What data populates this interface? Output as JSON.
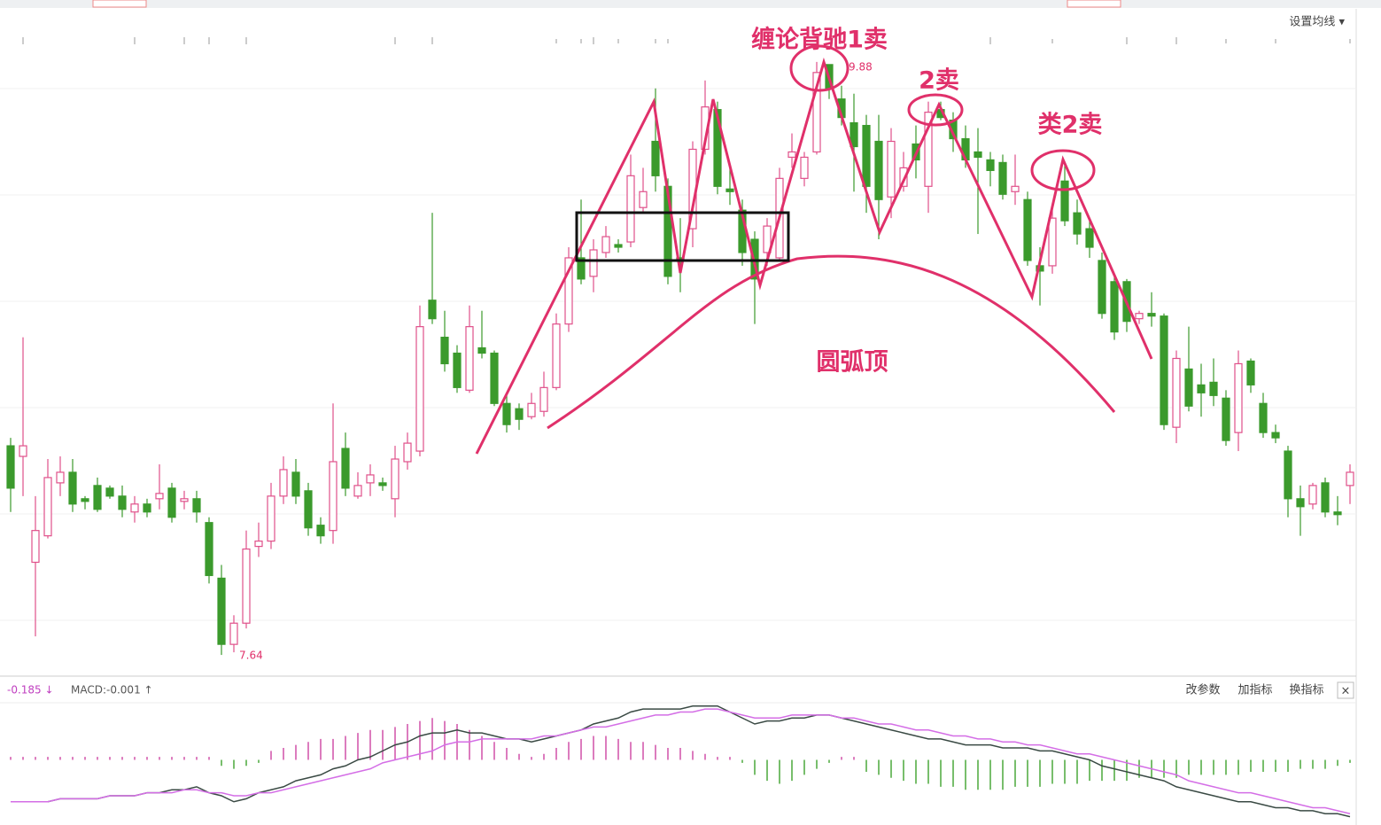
{
  "toolbar": {
    "ma_setting": "设置均线 ▾"
  },
  "macd_panel": {
    "readout": [
      "-0.185 ↓",
      "MACD:-0.001 ↑"
    ],
    "buttons": [
      "改参数",
      "加指标",
      "换指标",
      "×"
    ]
  },
  "chart_data": [
    {
      "type": "candlestick",
      "open": [
        8.43,
        8.39,
        7.99,
        8.09,
        8.29,
        8.33,
        8.23,
        8.28,
        8.27,
        8.24,
        8.18,
        8.21,
        8.23,
        8.27,
        8.22,
        8.23,
        8.14,
        7.93,
        7.68,
        7.76,
        8.05,
        8.07,
        8.24,
        8.33,
        8.26,
        8.13,
        8.11,
        8.42,
        8.24,
        8.29,
        8.29,
        8.23,
        8.37,
        8.41,
        8.98,
        8.84,
        8.78,
        8.64,
        8.8,
        8.78,
        8.59,
        8.57,
        8.54,
        8.56,
        8.65,
        8.89,
        9.14,
        9.07,
        9.16,
        9.19,
        9.2,
        9.33,
        9.58,
        9.41,
        9.14,
        9.25,
        9.55,
        9.7,
        9.4,
        9.32,
        9.21,
        9.16,
        9.14,
        9.52,
        9.44,
        9.54,
        9.87,
        9.74,
        9.65,
        9.64,
        9.58,
        9.37,
        9.41,
        9.57,
        9.41,
        9.7,
        9.66,
        9.59,
        9.54,
        9.51,
        9.5,
        9.39,
        9.36,
        9.11,
        9.11,
        9.43,
        9.31,
        9.25,
        9.13,
        9.05,
        9.05,
        8.91,
        8.93,
        8.92,
        8.5,
        8.72,
        8.66,
        8.67,
        8.61,
        8.48,
        8.75,
        8.59,
        8.48,
        8.41,
        8.23,
        8.21,
        8.29,
        8.18,
        8.28
      ],
      "close": [
        8.27,
        8.43,
        8.11,
        8.31,
        8.33,
        8.21,
        8.22,
        8.19,
        8.24,
        8.19,
        8.21,
        8.18,
        8.25,
        8.16,
        8.23,
        8.18,
        7.94,
        7.68,
        7.76,
        8.04,
        8.07,
        8.24,
        8.34,
        8.24,
        8.12,
        8.09,
        8.37,
        8.27,
        8.28,
        8.32,
        8.28,
        8.38,
        8.44,
        8.88,
        8.91,
        8.74,
        8.65,
        8.88,
        8.78,
        8.59,
        8.51,
        8.53,
        8.59,
        8.65,
        8.89,
        9.14,
        9.06,
        9.17,
        9.22,
        9.18,
        9.45,
        9.39,
        9.45,
        9.07,
        9.13,
        9.55,
        9.71,
        9.41,
        9.39,
        9.16,
        9.06,
        9.26,
        9.44,
        9.54,
        9.52,
        9.84,
        9.78,
        9.67,
        9.56,
        9.41,
        9.36,
        9.58,
        9.48,
        9.51,
        9.69,
        9.67,
        9.59,
        9.51,
        9.52,
        9.47,
        9.38,
        9.41,
        9.13,
        9.09,
        9.29,
        9.28,
        9.23,
        9.18,
        8.93,
        8.86,
        8.9,
        8.93,
        8.92,
        8.51,
        8.76,
        8.58,
        8.63,
        8.62,
        8.45,
        8.74,
        8.66,
        8.48,
        8.46,
        8.23,
        8.2,
        8.28,
        8.18,
        8.17,
        8.33
      ],
      "low": [
        8.18,
        8.24,
        7.71,
        8.08,
        8.24,
        8.18,
        8.19,
        8.18,
        8.23,
        8.16,
        8.14,
        8.16,
        8.19,
        8.14,
        8.19,
        8.14,
        7.91,
        7.64,
        7.65,
        7.74,
        8.01,
        8.04,
        8.21,
        8.21,
        8.09,
        8.06,
        8.06,
        8.24,
        8.23,
        8.24,
        8.26,
        8.16,
        8.34,
        8.39,
        8.89,
        8.71,
        8.63,
        8.63,
        8.76,
        8.58,
        8.48,
        8.49,
        8.53,
        8.54,
        8.64,
        8.86,
        9.04,
        9.01,
        9.14,
        9.16,
        9.18,
        9.31,
        9.39,
        9.04,
        9.01,
        9.18,
        9.53,
        9.38,
        9.34,
        9.11,
        8.89,
        9.11,
        9.13,
        9.48,
        9.41,
        9.53,
        9.74,
        9.64,
        9.39,
        9.31,
        9.21,
        9.29,
        9.39,
        9.44,
        9.31,
        9.66,
        9.54,
        9.48,
        9.23,
        9.41,
        9.36,
        9.34,
        9.11,
        8.96,
        9.08,
        9.26,
        9.19,
        9.14,
        8.91,
        8.83,
        8.86,
        8.89,
        8.88,
        8.49,
        8.44,
        8.56,
        8.54,
        8.58,
        8.43,
        8.41,
        8.63,
        8.46,
        8.44,
        8.16,
        8.09,
        8.19,
        8.16,
        8.13,
        8.21
      ],
      "high": [
        8.46,
        8.84,
        8.24,
        8.38,
        8.39,
        8.38,
        8.24,
        8.31,
        8.28,
        8.28,
        8.24,
        8.23,
        8.36,
        8.29,
        8.26,
        8.26,
        8.16,
        7.98,
        7.79,
        8.11,
        8.14,
        8.29,
        8.39,
        8.38,
        8.29,
        8.16,
        8.59,
        8.48,
        8.33,
        8.36,
        8.31,
        8.43,
        8.48,
        8.96,
        9.31,
        8.94,
        8.81,
        8.96,
        8.94,
        8.79,
        8.63,
        8.59,
        8.63,
        8.71,
        8.93,
        9.18,
        9.36,
        9.21,
        9.26,
        9.21,
        9.53,
        9.48,
        9.78,
        9.44,
        9.29,
        9.58,
        9.81,
        9.73,
        9.48,
        9.36,
        9.24,
        9.29,
        9.48,
        9.61,
        9.54,
        9.88,
        9.87,
        9.79,
        9.76,
        9.68,
        9.68,
        9.63,
        9.54,
        9.64,
        9.73,
        9.73,
        9.69,
        9.64,
        9.63,
        9.54,
        9.53,
        9.53,
        9.39,
        9.18,
        9.33,
        9.49,
        9.36,
        9.28,
        9.16,
        9.08,
        9.06,
        8.94,
        9.01,
        8.93,
        8.79,
        8.88,
        8.74,
        8.76,
        8.64,
        8.79,
        8.76,
        8.63,
        8.51,
        8.43,
        8.28,
        8.29,
        8.31,
        8.24,
        8.36
      ],
      "ylim": [
        7.57,
        9.98
      ],
      "up_color": "#e0508a",
      "down_color": "#3b9a2c",
      "annotations": [
        "缠论背驰1卖",
        "2卖",
        "类2卖",
        "圆弧顶"
      ]
    },
    {
      "type": "macd",
      "series": [
        {
          "color": "#3a4a44",
          "values": [
            -0.14,
            -0.14,
            -0.14,
            -0.14,
            -0.13,
            -0.13,
            -0.13,
            -0.13,
            -0.12,
            -0.12,
            -0.12,
            -0.11,
            -0.11,
            -0.1,
            -0.1,
            -0.09,
            -0.11,
            -0.12,
            -0.14,
            -0.13,
            -0.11,
            -0.1,
            -0.09,
            -0.07,
            -0.06,
            -0.05,
            -0.03,
            -0.02,
            0.0,
            0.01,
            0.03,
            0.05,
            0.06,
            0.08,
            0.09,
            0.09,
            0.1,
            0.09,
            0.09,
            0.08,
            0.07,
            0.07,
            0.06,
            0.07,
            0.08,
            0.09,
            0.1,
            0.12,
            0.13,
            0.14,
            0.16,
            0.17,
            0.17,
            0.17,
            0.17,
            0.18,
            0.18,
            0.18,
            0.16,
            0.14,
            0.12,
            0.13,
            0.13,
            0.14,
            0.14,
            0.15,
            0.15,
            0.14,
            0.13,
            0.12,
            0.11,
            0.1,
            0.09,
            0.08,
            0.07,
            0.07,
            0.06,
            0.05,
            0.05,
            0.05,
            0.04,
            0.04,
            0.04,
            0.03,
            0.03,
            0.02,
            0.01,
            0.0,
            -0.02,
            -0.03,
            -0.04,
            -0.05,
            -0.06,
            -0.07,
            -0.09,
            -0.1,
            -0.11,
            -0.12,
            -0.13,
            -0.14,
            -0.14,
            -0.15,
            -0.16,
            -0.16,
            -0.17,
            -0.17,
            -0.18,
            -0.18,
            -0.19
          ]
        },
        {
          "color": "#d46ee6",
          "values": [
            -0.14,
            -0.14,
            -0.14,
            -0.14,
            -0.13,
            -0.13,
            -0.13,
            -0.13,
            -0.12,
            -0.12,
            -0.12,
            -0.11,
            -0.11,
            -0.11,
            -0.1,
            -0.1,
            -0.11,
            -0.11,
            -0.12,
            -0.12,
            -0.11,
            -0.11,
            -0.1,
            -0.09,
            -0.08,
            -0.07,
            -0.06,
            -0.05,
            -0.04,
            -0.03,
            -0.01,
            0.0,
            0.01,
            0.02,
            0.03,
            0.05,
            0.06,
            0.06,
            0.07,
            0.07,
            0.07,
            0.07,
            0.07,
            0.08,
            0.08,
            0.09,
            0.1,
            0.11,
            0.11,
            0.12,
            0.13,
            0.14,
            0.15,
            0.15,
            0.16,
            0.16,
            0.17,
            0.17,
            0.16,
            0.15,
            0.14,
            0.14,
            0.14,
            0.15,
            0.15,
            0.15,
            0.15,
            0.14,
            0.14,
            0.13,
            0.12,
            0.12,
            0.11,
            0.1,
            0.1,
            0.09,
            0.08,
            0.08,
            0.07,
            0.07,
            0.06,
            0.06,
            0.05,
            0.05,
            0.04,
            0.03,
            0.02,
            0.02,
            0.01,
            0.0,
            -0.01,
            -0.02,
            -0.03,
            -0.04,
            -0.05,
            -0.07,
            -0.08,
            -0.09,
            -0.1,
            -0.11,
            -0.11,
            -0.12,
            -0.13,
            -0.14,
            -0.15,
            -0.16,
            -0.16,
            -0.17,
            -0.18
          ]
        }
      ],
      "histogram": [
        0.01,
        0.01,
        0.01,
        0.01,
        0.01,
        0.01,
        0.01,
        0.01,
        0.01,
        0.01,
        0.01,
        0.01,
        0.01,
        0.01,
        0.01,
        0.01,
        0.01,
        -0.02,
        -0.03,
        -0.02,
        -0.01,
        0.03,
        0.04,
        0.05,
        0.06,
        0.07,
        0.07,
        0.08,
        0.09,
        0.1,
        0.1,
        0.11,
        0.12,
        0.13,
        0.14,
        0.13,
        0.12,
        0.1,
        0.08,
        0.06,
        0.04,
        0.02,
        0.01,
        0.02,
        0.04,
        0.06,
        0.07,
        0.08,
        0.08,
        0.07,
        0.06,
        0.06,
        0.05,
        0.04,
        0.04,
        0.03,
        0.02,
        0.01,
        0.01,
        -0.01,
        -0.05,
        -0.07,
        -0.08,
        -0.07,
        -0.05,
        -0.03,
        -0.01,
        0.01,
        0.01,
        -0.04,
        -0.05,
        -0.06,
        -0.07,
        -0.08,
        -0.08,
        -0.09,
        -0.09,
        -0.1,
        -0.1,
        -0.1,
        -0.1,
        -0.09,
        -0.09,
        -0.09,
        -0.08,
        -0.08,
        -0.08,
        -0.07,
        -0.07,
        -0.07,
        -0.07,
        -0.06,
        -0.06,
        -0.06,
        -0.06,
        -0.05,
        -0.05,
        -0.05,
        -0.05,
        -0.05,
        -0.04,
        -0.04,
        -0.04,
        -0.04,
        -0.03,
        -0.03,
        -0.03,
        -0.02,
        -0.01
      ],
      "ylim": [
        -0.2,
        0.2
      ],
      "up_color": "#d050a8",
      "down_color": "#4aa83a"
    }
  ]
}
